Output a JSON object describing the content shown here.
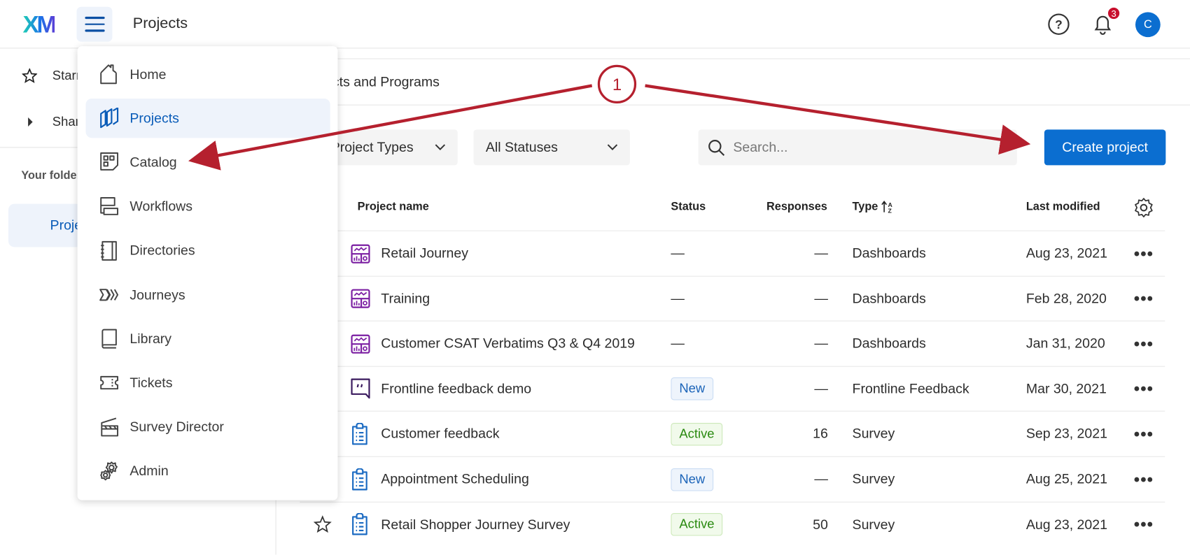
{
  "header": {
    "logo": "XM",
    "title": "Projects",
    "notification_count": "3",
    "avatar_initial": "C"
  },
  "sidebar": {
    "starred": "Starred",
    "shared": "Shared",
    "your_folders": "Your folders",
    "projects": "Projects"
  },
  "breadcrumb": "Projects and Programs",
  "filters": {
    "project_types": "All Project Types",
    "statuses": "All Statuses",
    "search_placeholder": "Search...",
    "create_button": "Create project"
  },
  "table": {
    "columns": {
      "name": "Project name",
      "status": "Status",
      "responses": "Responses",
      "type": "Type",
      "last_modified": "Last modified"
    },
    "rows": [
      {
        "icon": "dashboard-icon",
        "name": "Retail Journey",
        "status": "—",
        "status_kind": "none",
        "responses": "—",
        "type": "Dashboards",
        "modified": "Aug 23, 2021"
      },
      {
        "icon": "dashboard-icon",
        "name": "Training",
        "status": "—",
        "status_kind": "none",
        "responses": "—",
        "type": "Dashboards",
        "modified": "Feb 28, 2020"
      },
      {
        "icon": "dashboard-icon",
        "name": "Customer CSAT Verbatims Q3 & Q4 2019",
        "status": "—",
        "status_kind": "none",
        "responses": "—",
        "type": "Dashboards",
        "modified": "Jan 31, 2020"
      },
      {
        "icon": "frontline-feedback-icon",
        "name": "Frontline feedback demo",
        "status": "New",
        "status_kind": "new",
        "responses": "—",
        "type": "Frontline Feedback",
        "modified": "Mar 30, 2021"
      },
      {
        "icon": "survey-icon",
        "name": "Customer feedback",
        "status": "Active",
        "status_kind": "active",
        "responses": "16",
        "type": "Survey",
        "modified": "Sep 23, 2021"
      },
      {
        "icon": "survey-icon",
        "name": "Appointment Scheduling",
        "status": "New",
        "status_kind": "new",
        "responses": "—",
        "type": "Survey",
        "modified": "Aug 25, 2021"
      },
      {
        "icon": "survey-icon",
        "name": "Retail Shopper Journey Survey",
        "status": "Active",
        "status_kind": "active",
        "responses": "50",
        "type": "Survey",
        "modified": "Aug 23, 2021"
      }
    ]
  },
  "menu": {
    "items": [
      {
        "label": "Home",
        "icon": "home-icon"
      },
      {
        "label": "Projects",
        "icon": "projects-icon",
        "selected": true
      },
      {
        "label": "Catalog",
        "icon": "catalog-icon"
      },
      {
        "label": "Workflows",
        "icon": "workflows-icon"
      },
      {
        "label": "Directories",
        "icon": "directories-icon"
      },
      {
        "label": "Journeys",
        "icon": "journeys-icon"
      },
      {
        "label": "Library",
        "icon": "library-icon"
      },
      {
        "label": "Tickets",
        "icon": "tickets-icon"
      },
      {
        "label": "Survey Director",
        "icon": "survey-director-icon"
      },
      {
        "label": "Admin",
        "icon": "admin-icon"
      }
    ]
  },
  "annotation": {
    "step": "1"
  },
  "colors": {
    "accent": "#0b6ed0",
    "annotation": "#b5202e",
    "dashboard_icon": "#7b1fa2",
    "survey_icon": "#1a6ac2"
  }
}
